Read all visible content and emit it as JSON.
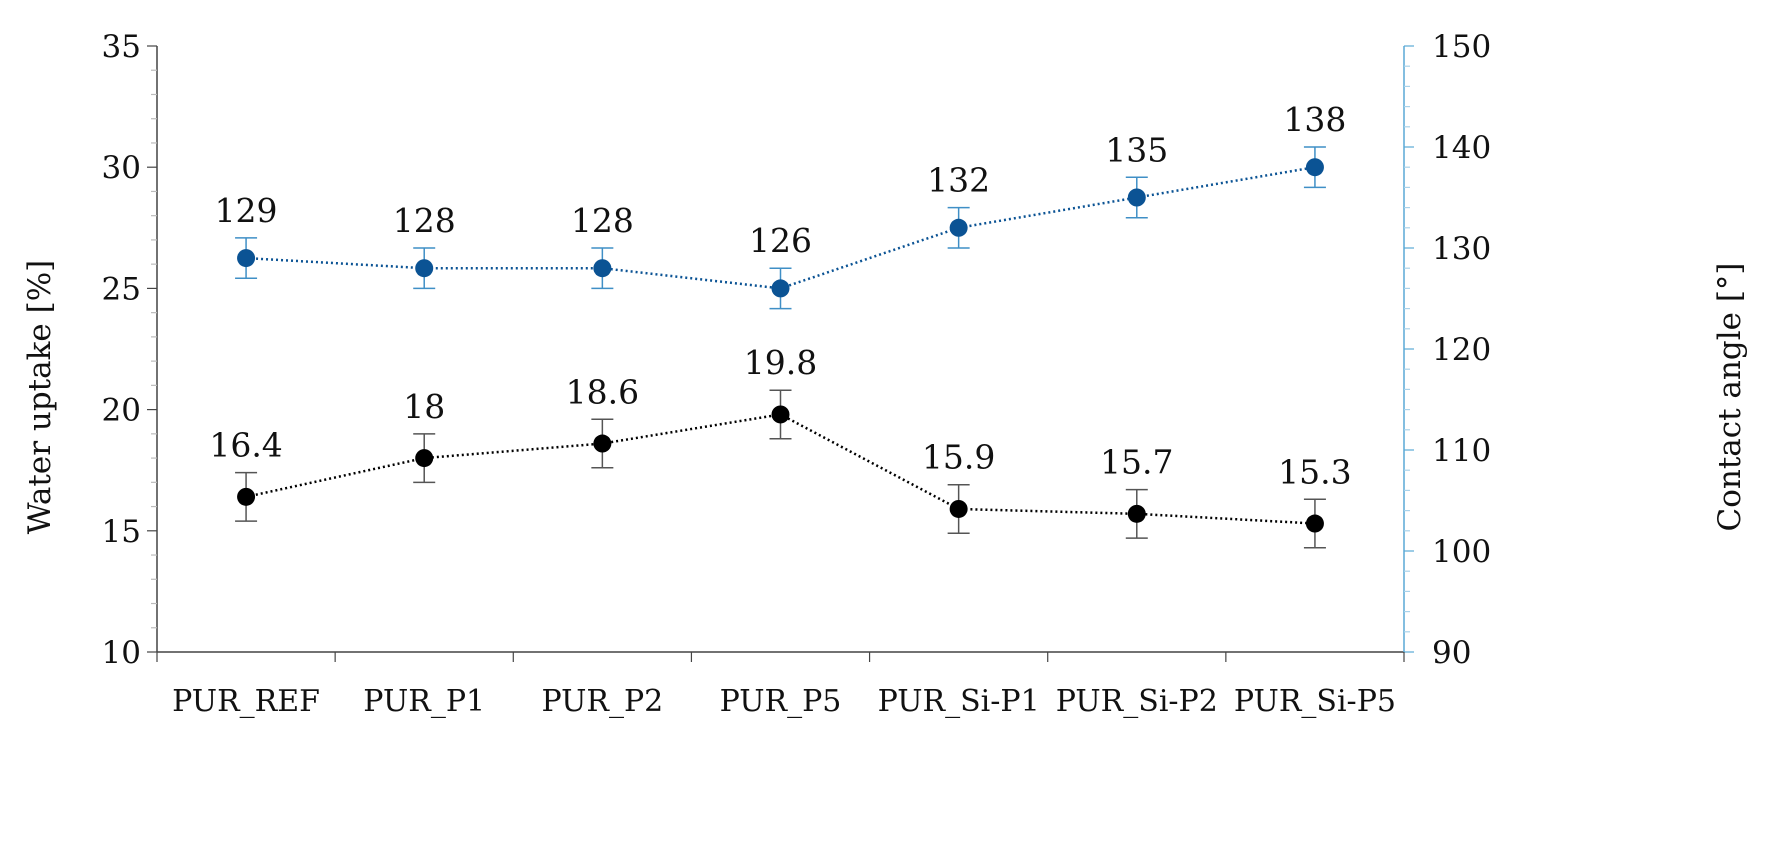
{
  "chart_data": {
    "type": "line",
    "categories": [
      "PUR_REF",
      "PUR_P1",
      "PUR_P2",
      "PUR_P5",
      "PUR_Si-P1",
      "PUR_Si-P2",
      "PUR_Si-P5"
    ],
    "y_left": {
      "label": "Water uptake [%]",
      "lim": [
        10,
        35
      ],
      "ticks": [
        "10",
        "15",
        "20",
        "25",
        "30",
        "35"
      ]
    },
    "y_right": {
      "label": "Contact angle [°]",
      "lim": [
        90,
        150
      ],
      "ticks": [
        "90",
        "100",
        "110",
        "120",
        "130",
        "140",
        "150"
      ]
    },
    "series": [
      {
        "axis": "left",
        "color": "#000000",
        "errcolor": "#555555",
        "values": [
          16.4,
          18,
          18.6,
          19.8,
          15.9,
          15.7,
          15.3
        ],
        "labels": [
          "16.4",
          "18",
          "18.6",
          "19.8",
          "15.9",
          "15.7",
          "15.3"
        ],
        "error": [
          1.0,
          1.0,
          1.0,
          1.0,
          1.0,
          1.0,
          1.0
        ]
      },
      {
        "axis": "right",
        "color": "#0b5394",
        "errcolor": "#3f8fc6",
        "values": [
          129,
          128,
          128,
          126,
          132,
          135,
          138
        ],
        "labels": [
          "129",
          "128",
          "128",
          "126",
          "132",
          "135",
          "138"
        ],
        "error": [
          2,
          2,
          2,
          2,
          2,
          2,
          2
        ]
      }
    ],
    "grid": false,
    "legend": "none"
  }
}
